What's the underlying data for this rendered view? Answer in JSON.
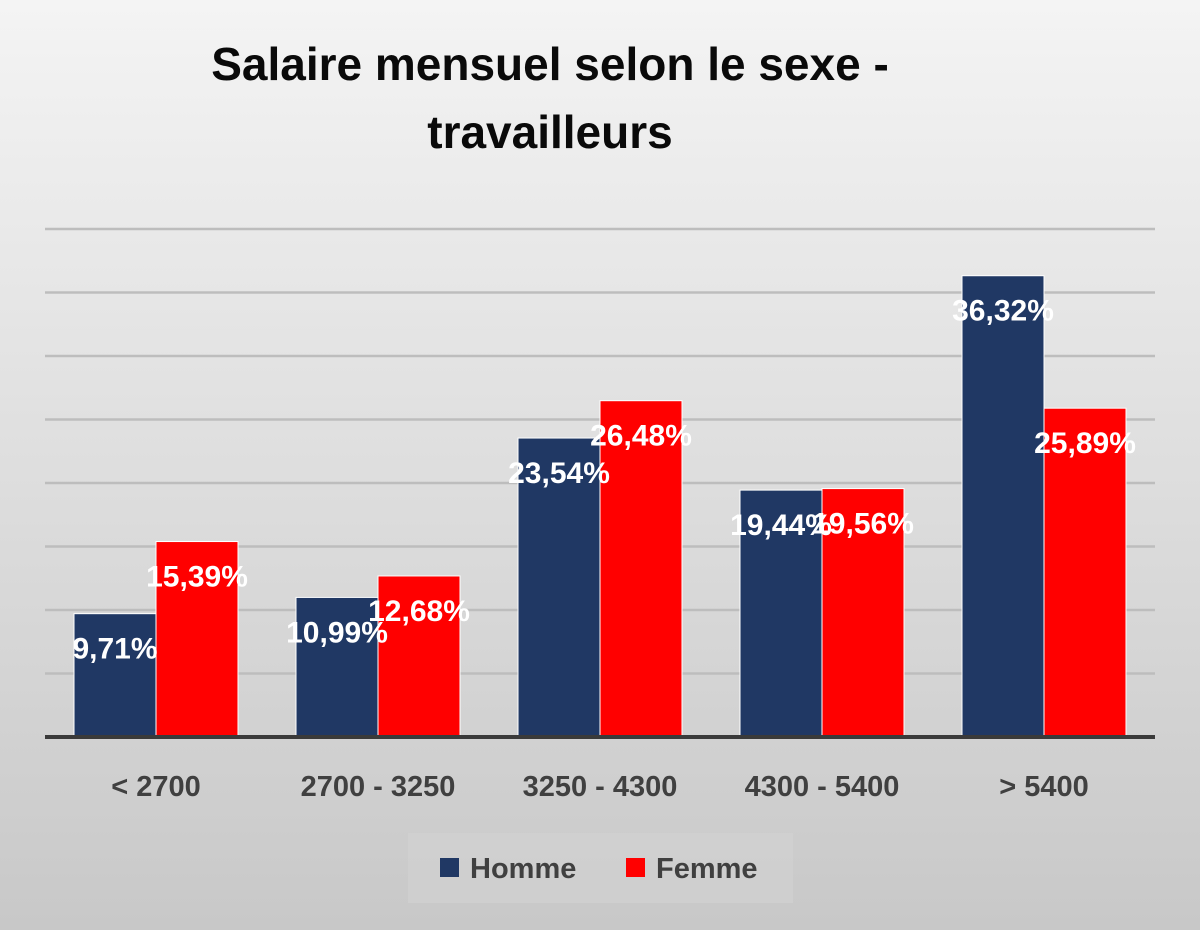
{
  "chart_data": {
    "type": "bar",
    "title": "Salaire mensuel selon le sexe - travailleurs",
    "title_lines": [
      "Salaire mensuel selon le sexe -",
      "travailleurs"
    ],
    "categories": [
      "< 2700",
      "2700 - 3250",
      "3250 - 4300",
      "4300 - 5400",
      "> 5400"
    ],
    "series": [
      {
        "name": "Homme",
        "color": "#203864",
        "values": [
          9.71,
          10.99,
          23.54,
          19.44,
          36.32
        ],
        "labels": [
          "9,71%",
          "10,99%",
          "23,54%",
          "19,44%",
          "36,32%"
        ]
      },
      {
        "name": "Femme",
        "color": "#ff0000",
        "values": [
          15.39,
          12.68,
          26.48,
          19.56,
          25.89
        ],
        "labels": [
          "15,39%",
          "12,68%",
          "26,48%",
          "19,56%",
          "25,89%"
        ]
      }
    ],
    "xlabel": "",
    "ylabel": "",
    "ylim": [
      0,
      40
    ],
    "grid": true,
    "y_axis_labels": false,
    "legend": "bottom"
  }
}
